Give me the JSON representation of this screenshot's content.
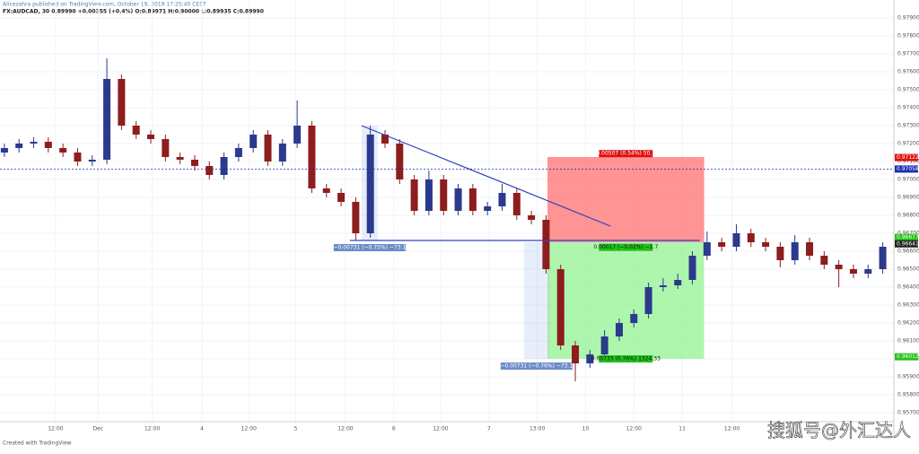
{
  "chart_data": {
    "type": "candlestick",
    "header": "Alicezahra published on TradingView.com, October 19, 2019 17:25:40 CEST",
    "title": "FX:AUDCAD, 30 0.89990 +0.00355 (+0.4%) O:0.89971 H:0.90000 L:0.89935 C:0.89990",
    "footer": "Created with TradingView",
    "watermark": "搜狐号@外汇达人",
    "up_color": "#2b3a8c",
    "down_color": "#8e1d1d",
    "grid": true,
    "xlim": [
      -0.3,
      60.7
    ],
    "ylim": [
      0.9565,
      0.98
    ],
    "xticks": [
      {
        "value": 3.5,
        "label": "12:00"
      },
      {
        "value": 6.4,
        "label": "Dec"
      },
      {
        "value": 10.1,
        "label": "12:00"
      },
      {
        "value": 13.5,
        "label": "4"
      },
      {
        "value": 16.7,
        "label": "12:00"
      },
      {
        "value": 19.9,
        "label": "5"
      },
      {
        "value": 23.3,
        "label": "12:00"
      },
      {
        "value": 26.6,
        "label": "6"
      },
      {
        "value": 29.8,
        "label": "12:00"
      },
      {
        "value": 33.1,
        "label": "7"
      },
      {
        "value": 36.4,
        "label": "13:00"
      },
      {
        "value": 39.7,
        "label": "10"
      },
      {
        "value": 43,
        "label": "12:00"
      },
      {
        "value": 46.3,
        "label": "11"
      },
      {
        "value": 49.7,
        "label": "12:00"
      }
    ],
    "yticks": [
      {
        "value": 0.957,
        "label": "0.95700"
      },
      {
        "value": 0.958,
        "label": "0.95800"
      },
      {
        "value": 0.959,
        "label": "0.95900"
      },
      {
        "value": 0.96,
        "label": "0.96000"
      },
      {
        "value": 0.961,
        "label": "0.96100"
      },
      {
        "value": 0.962,
        "label": "0.96200"
      },
      {
        "value": 0.963,
        "label": "0.96300"
      },
      {
        "value": 0.964,
        "label": "0.96400"
      },
      {
        "value": 0.965,
        "label": "0.96500"
      },
      {
        "value": 0.966,
        "label": "0.96600"
      },
      {
        "value": 0.967,
        "label": "0.96700"
      },
      {
        "value": 0.968,
        "label": "0.96800"
      },
      {
        "value": 0.969,
        "label": "0.96900"
      },
      {
        "value": 0.97,
        "label": "0.97000"
      },
      {
        "value": 0.971,
        "label": "0.97100"
      },
      {
        "value": 0.972,
        "label": "0.97200"
      },
      {
        "value": 0.973,
        "label": "0.97300"
      },
      {
        "value": 0.974,
        "label": "0.97400"
      },
      {
        "value": 0.975,
        "label": "0.97500"
      },
      {
        "value": 0.976,
        "label": "0.97600"
      },
      {
        "value": 0.977,
        "label": "0.97700"
      },
      {
        "value": 0.978,
        "label": "0.97800"
      },
      {
        "value": 0.979,
        "label": "0.97900"
      }
    ],
    "open": [
      0.9715,
      0.97175,
      0.972,
      0.9721,
      0.97175,
      0.9715,
      0.971,
      0.9711,
      0.9756,
      0.973,
      0.9725,
      0.97225,
      0.97125,
      0.9711,
      0.97075,
      0.97025,
      0.97125,
      0.97175,
      0.9725,
      0.971,
      0.972,
      0.973,
      0.9695,
      0.96925,
      0.96875,
      0.967,
      0.9725,
      0.972,
      0.97,
      0.96825,
      0.97,
      0.96825,
      0.9695,
      0.96825,
      0.9685,
      0.96925,
      0.968,
      0.96775,
      0.965,
      0.96075,
      0.95975,
      0.96025,
      0.96125,
      0.962,
      0.9625,
      0.964,
      0.9641,
      0.9644,
      0.96575,
      0.9665,
      0.96625,
      0.967,
      0.9665,
      0.96625,
      0.9655,
      0.9665,
      0.96575,
      0.96525,
      0.965,
      0.96475,
      0.965
    ],
    "high": [
      0.972,
      0.97225,
      0.97235,
      0.97235,
      0.972,
      0.97175,
      0.97135,
      0.97675,
      0.97585,
      0.97325,
      0.97275,
      0.9725,
      0.9715,
      0.97135,
      0.971,
      0.9715,
      0.972,
      0.97275,
      0.97275,
      0.97225,
      0.9744,
      0.97325,
      0.96975,
      0.9695,
      0.969,
      0.973,
      0.97275,
      0.97225,
      0.97025,
      0.9705,
      0.97025,
      0.96975,
      0.96975,
      0.96875,
      0.96975,
      0.9695,
      0.96825,
      0.968,
      0.96525,
      0.961,
      0.9605,
      0.9616,
      0.96225,
      0.96275,
      0.96425,
      0.9645,
      0.96475,
      0.966,
      0.9671,
      0.96675,
      0.9675,
      0.96725,
      0.96675,
      0.9665,
      0.9669,
      0.96675,
      0.966,
      0.9655,
      0.96525,
      0.96525,
      0.9665
    ],
    "low": [
      0.97125,
      0.9715,
      0.97175,
      0.9715,
      0.97125,
      0.97075,
      0.97075,
      0.97085,
      0.97275,
      0.97225,
      0.972,
      0.971,
      0.97085,
      0.9705,
      0.97,
      0.97,
      0.971,
      0.9715,
      0.97075,
      0.97075,
      0.97175,
      0.96925,
      0.969,
      0.9685,
      0.9666,
      0.96675,
      0.97175,
      0.96975,
      0.968,
      0.968,
      0.968,
      0.968,
      0.968,
      0.968,
      0.96825,
      0.96775,
      0.9675,
      0.96475,
      0.9605,
      0.95875,
      0.9595,
      0.96,
      0.961,
      0.96175,
      0.96225,
      0.96375,
      0.9639,
      0.96415,
      0.9655,
      0.966,
      0.966,
      0.96625,
      0.966,
      0.9651,
      0.96525,
      0.9655,
      0.965,
      0.964,
      0.9645,
      0.9645,
      0.96475
    ],
    "close": [
      0.97175,
      0.972,
      0.9721,
      0.97175,
      0.9715,
      0.971,
      0.9711,
      0.9756,
      0.973,
      0.9725,
      0.97225,
      0.97125,
      0.9711,
      0.97075,
      0.97025,
      0.97125,
      0.97175,
      0.9725,
      0.971,
      0.972,
      0.973,
      0.9695,
      0.96925,
      0.96875,
      0.967,
      0.9725,
      0.972,
      0.97,
      0.96825,
      0.97,
      0.96825,
      0.9695,
      0.96825,
      0.9685,
      0.96925,
      0.968,
      0.96775,
      0.965,
      0.96075,
      0.95975,
      0.96025,
      0.96125,
      0.962,
      0.9625,
      0.964,
      0.9641,
      0.9644,
      0.96575,
      0.9665,
      0.96625,
      0.967,
      0.9665,
      0.96625,
      0.9655,
      0.9665,
      0.96575,
      0.96525,
      0.965,
      0.96475,
      0.965,
      0.96625
    ],
    "position": {
      "start": 37.1,
      "end": 47.8,
      "entry": 0.9665,
      "stop": 0.97125,
      "target": 0.96,
      "stop_label": "0.00507 (0.54%) 50.7",
      "entry_label": "0.00017 (−0.02%) −1.7",
      "target_label": "0.00733 (0.76%) 1324.33"
    },
    "trendlines": [
      {
        "x": [
          24.4,
          41.4
        ],
        "y": [
          0.973,
          0.9674
        ]
      },
      {
        "x": [
          23.6,
          47.5
        ],
        "y": [
          0.9666,
          0.9666
        ]
      }
    ],
    "measures": [
      {
        "x": [
          24.4,
          25.5
        ],
        "y": [
          0.973,
          0.9666
        ],
        "label": "−0.00731 (−0.75%) −73.1"
      },
      {
        "x": [
          35.5,
          37.2
        ],
        "y": [
          0.9665,
          0.96
        ],
        "label": "−0.00731 (−0.76%) −73.1"
      }
    ],
    "price_markers": [
      {
        "value": 0.97122,
        "label": "0.97122",
        "color": "#e01010"
      },
      {
        "value": 0.97058,
        "label": "0.97058",
        "color": "#1a2bb0",
        "dashed": true
      },
      {
        "value": 0.96677,
        "label": "0.96677",
        "color": "#22c01a"
      },
      {
        "value": 0.96641,
        "label": "0.96641",
        "color": "#222222"
      },
      {
        "value": 0.96012,
        "label": "0.96012",
        "color": "#22c01a"
      }
    ]
  }
}
